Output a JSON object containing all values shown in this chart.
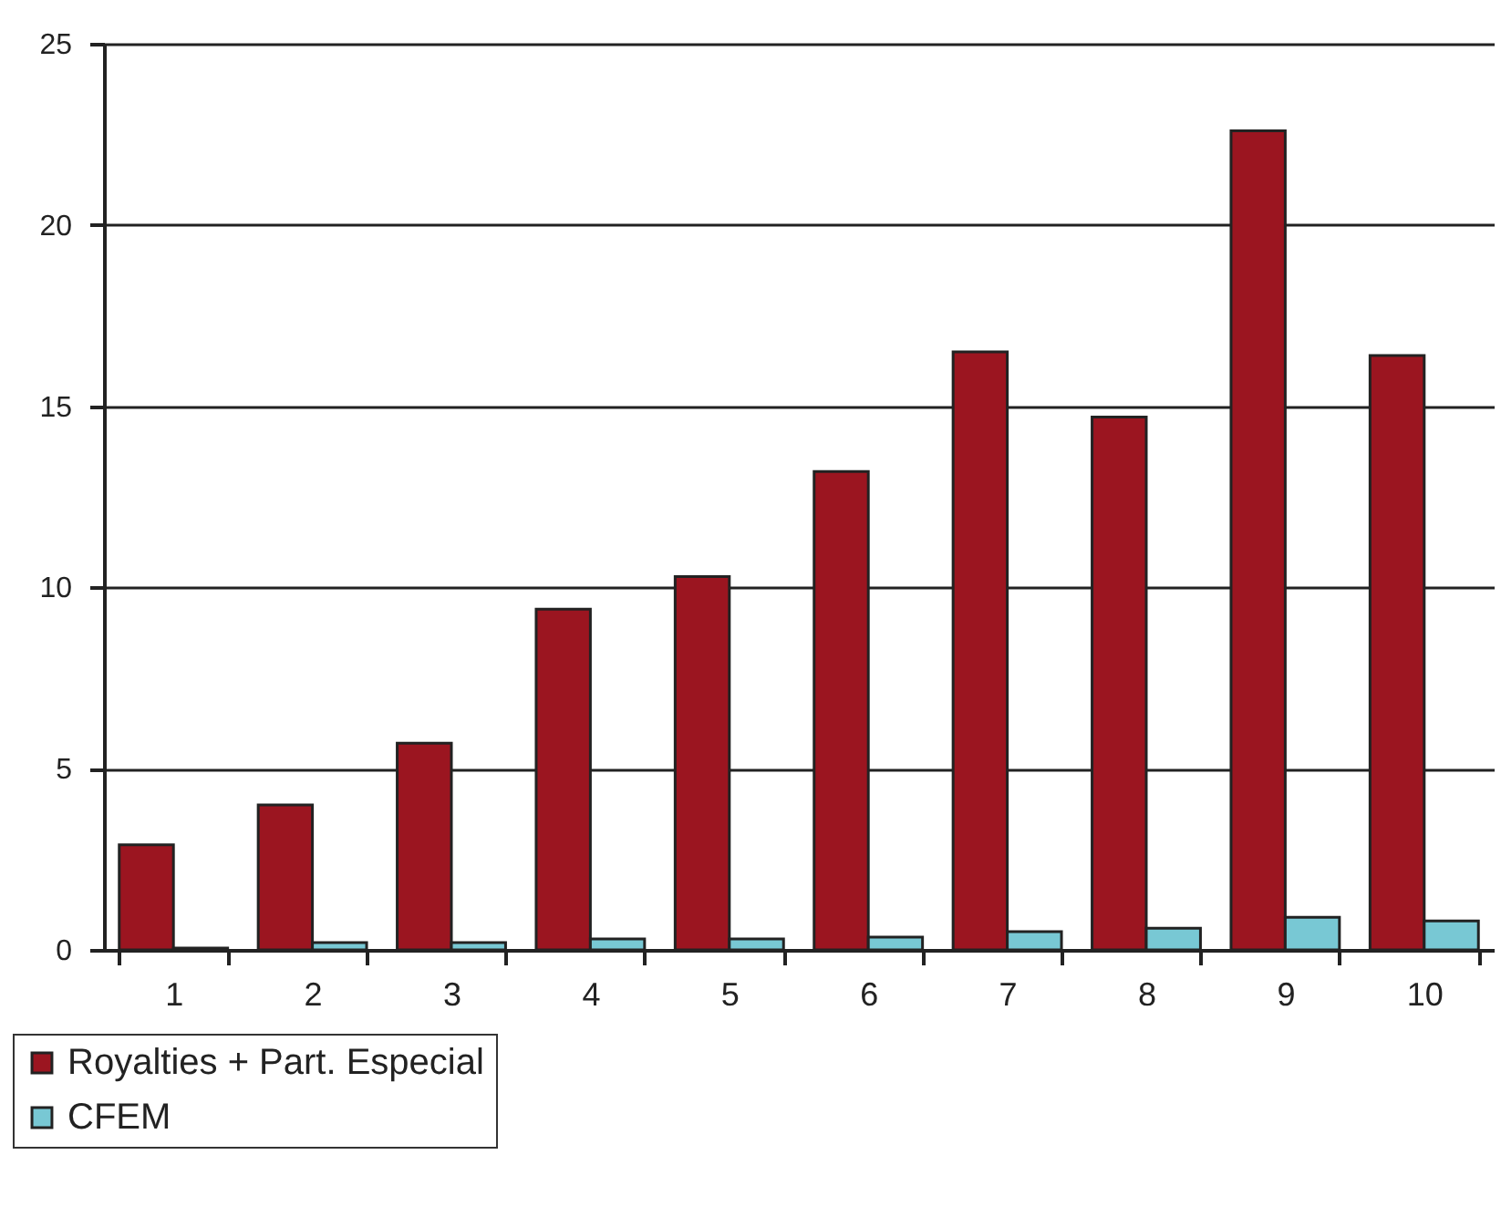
{
  "chart_data": {
    "type": "bar",
    "categories": [
      "1",
      "2",
      "3",
      "4",
      "5",
      "6",
      "7",
      "8",
      "9",
      "10"
    ],
    "series": [
      {
        "name": "Royalties + Part. Especial",
        "color": "#9b1520",
        "values": [
          2.9,
          4.0,
          5.7,
          9.4,
          10.3,
          13.2,
          16.5,
          14.7,
          22.6,
          16.4
        ]
      },
      {
        "name": "CFEM",
        "color": "#78c8d4",
        "values": [
          0.05,
          0.2,
          0.2,
          0.3,
          0.3,
          0.35,
          0.5,
          0.6,
          0.9,
          0.8
        ]
      }
    ],
    "ylim": [
      0,
      25
    ],
    "yticks": [
      0,
      5,
      10,
      15,
      20,
      25
    ],
    "grid": "y",
    "legend": "bottom left"
  }
}
